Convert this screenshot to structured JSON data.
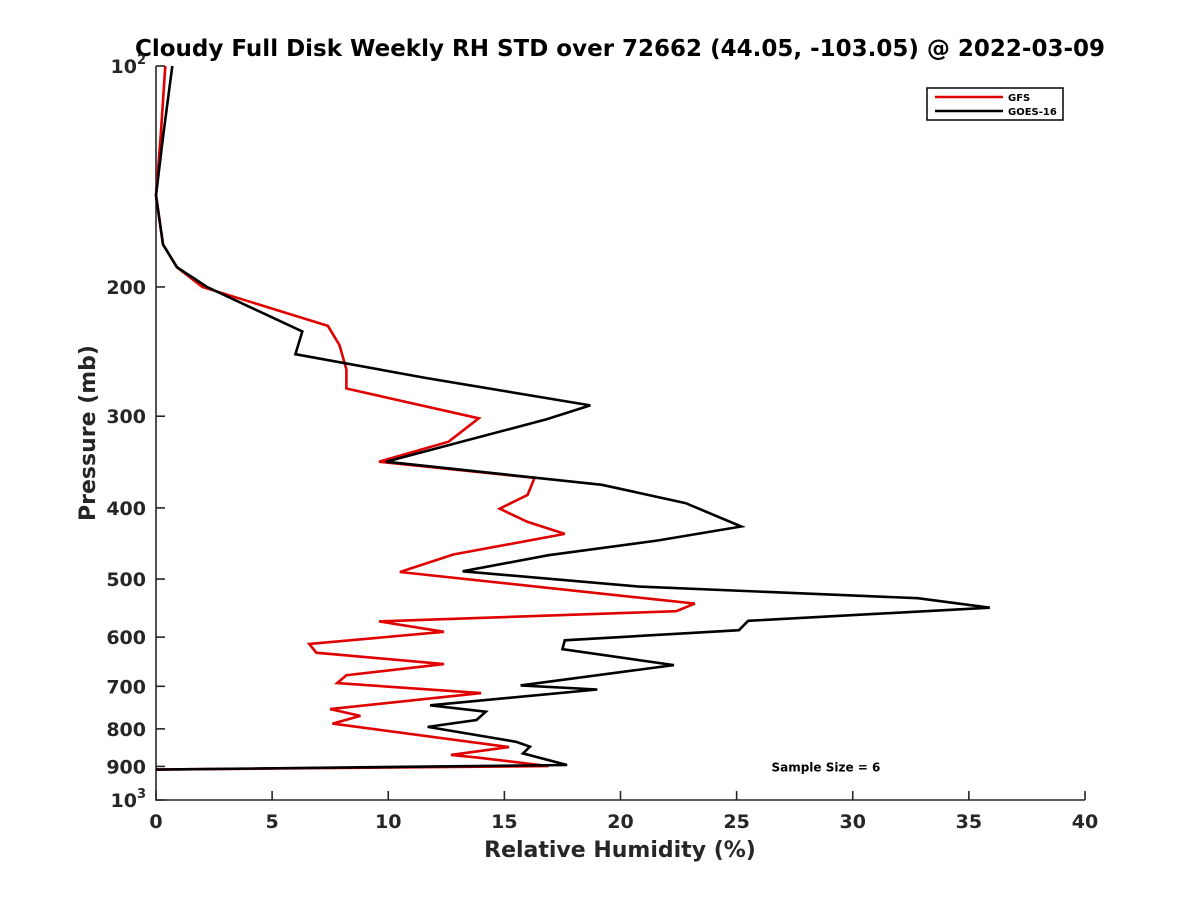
{
  "chart_data": {
    "type": "line",
    "title": "Cloudy Full Disk Weekly RH STD over 72662 (44.05, -103.05) @ 2022-03-09",
    "xlabel": "Relative Humidity (%)",
    "ylabel": "Pressure (mb)",
    "xlim": [
      0,
      40
    ],
    "ylim": [
      100,
      1000
    ],
    "y_scale": "log",
    "y_reversed": true,
    "grid": false,
    "legend_position": "top-right",
    "x_ticks": [
      {
        "value": 0,
        "label": "0"
      },
      {
        "value": 5,
        "label": "5"
      },
      {
        "value": 10,
        "label": "10"
      },
      {
        "value": 15,
        "label": "15"
      },
      {
        "value": 20,
        "label": "20"
      },
      {
        "value": 25,
        "label": "25"
      },
      {
        "value": 30,
        "label": "30"
      },
      {
        "value": 35,
        "label": "35"
      },
      {
        "value": 40,
        "label": "40"
      }
    ],
    "y_ticks": [
      {
        "value": 100,
        "base": "10",
        "exp": "2"
      },
      {
        "value": 200,
        "label": "200"
      },
      {
        "value": 300,
        "label": "300"
      },
      {
        "value": 400,
        "label": "400"
      },
      {
        "value": 500,
        "label": "500"
      },
      {
        "value": 600,
        "label": "600"
      },
      {
        "value": 700,
        "label": "700"
      },
      {
        "value": 800,
        "label": "800"
      },
      {
        "value": 900,
        "label": "900"
      },
      {
        "value": 1000,
        "base": "10",
        "exp": "3"
      }
    ],
    "series": [
      {
        "name": "GFS",
        "color": "#e00000",
        "points": [
          [
            0.4,
            100
          ],
          [
            0.2,
            125
          ],
          [
            0.0,
            150
          ],
          [
            0.3,
            175
          ],
          [
            0.9,
            188
          ],
          [
            2.0,
            200
          ],
          [
            7.4,
            226
          ],
          [
            7.9,
            240
          ],
          [
            8.2,
            259
          ],
          [
            8.2,
            275
          ],
          [
            13.9,
            302
          ],
          [
            12.6,
            325
          ],
          [
            9.6,
            346
          ],
          [
            16.3,
            364
          ],
          [
            16.0,
            384
          ],
          [
            14.8,
            401
          ],
          [
            16.0,
            418
          ],
          [
            17.6,
            434
          ],
          [
            12.8,
            463
          ],
          [
            10.5,
            489
          ],
          [
            15.9,
            510
          ],
          [
            23.2,
            540
          ],
          [
            22.4,
            553
          ],
          [
            9.6,
            571
          ],
          [
            12.4,
            590
          ],
          [
            6.6,
            613
          ],
          [
            6.9,
            630
          ],
          [
            12.4,
            653
          ],
          [
            8.2,
            676
          ],
          [
            7.8,
            693
          ],
          [
            14.0,
            715
          ],
          [
            7.5,
            752
          ],
          [
            8.8,
            768
          ],
          [
            7.6,
            787
          ],
          [
            15.2,
            847
          ],
          [
            12.7,
            868
          ],
          [
            13.8,
            875
          ],
          [
            16.9,
            899
          ],
          [
            0.0,
            909
          ]
        ]
      },
      {
        "name": "GOES-16",
        "color": "#000000",
        "points": [
          [
            0.7,
            100
          ],
          [
            0.3,
            125
          ],
          [
            0.0,
            150
          ],
          [
            0.3,
            175
          ],
          [
            0.9,
            188
          ],
          [
            2.2,
            200
          ],
          [
            6.3,
            230
          ],
          [
            6.0,
            247
          ],
          [
            11.6,
            266
          ],
          [
            18.7,
            290
          ],
          [
            16.8,
            303
          ],
          [
            9.9,
            346
          ],
          [
            19.2,
            372
          ],
          [
            22.8,
            394
          ],
          [
            25.2,
            424
          ],
          [
            21.6,
            443
          ],
          [
            16.9,
            464
          ],
          [
            13.2,
            488
          ],
          [
            20.8,
            512
          ],
          [
            32.8,
            531
          ],
          [
            35.9,
            547
          ],
          [
            25.5,
            570
          ],
          [
            25.1,
            587
          ],
          [
            17.6,
            606
          ],
          [
            17.5,
            623
          ],
          [
            22.3,
            655
          ],
          [
            15.7,
            698
          ],
          [
            19.0,
            707
          ],
          [
            11.8,
            743
          ],
          [
            14.2,
            758
          ],
          [
            13.8,
            778
          ],
          [
            11.7,
            795
          ],
          [
            15.5,
            833
          ],
          [
            16.1,
            846
          ],
          [
            15.8,
            864
          ],
          [
            17.7,
            896
          ],
          [
            0.0,
            909
          ]
        ]
      }
    ],
    "annotations": [
      {
        "text": "Sample Size = 6",
        "x": 26.5,
        "y": 900
      }
    ]
  }
}
